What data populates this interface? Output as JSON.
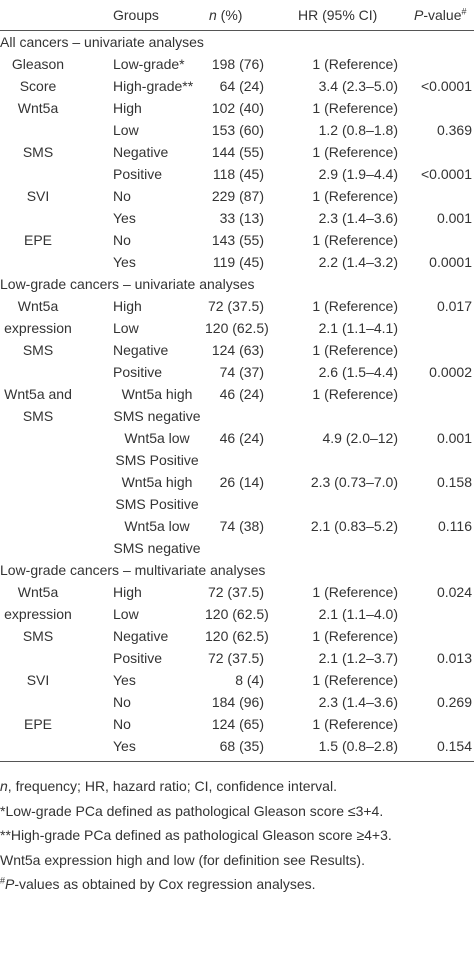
{
  "header": {
    "groups": "Groups",
    "n_italic": "n",
    "n_rest": " (%)",
    "hr": "HR (95% CI)",
    "p_italic": "P",
    "p_rest": "-value",
    "p_sup": "#"
  },
  "sections": [
    {
      "title": "All cancers – univariate analyses",
      "variables": [
        {
          "label": "Gleason Score",
          "rows": [
            {
              "group": "Low-grade*",
              "n": "198 (76)",
              "hr": "1 (Reference)"
            },
            {
              "group": "High-grade**",
              "n": "64 (24)",
              "hr": "3.4 (2.3–5.0)",
              "p": "<0.0001"
            }
          ]
        },
        {
          "label": "Wnt5a",
          "rows": [
            {
              "group": "High",
              "n": "102 (40)",
              "hr": "1 (Reference)"
            },
            {
              "group": "Low",
              "n": "153 (60)",
              "hr": "1.2 (0.8–1.8)",
              "p": "0.369"
            }
          ]
        },
        {
          "label": "SMS",
          "rows": [
            {
              "group": "Negative",
              "n": "144 (55)",
              "hr": "1 (Reference)"
            },
            {
              "group": "Positive",
              "n": "118 (45)",
              "hr": "2.9 (1.9–4.4)",
              "p": "<0.0001"
            }
          ]
        },
        {
          "label": "SVI",
          "rows": [
            {
              "group": "No",
              "n": "229 (87)",
              "hr": "1 (Reference)"
            },
            {
              "group": "Yes",
              "n": "33 (13)",
              "hr": "2.3 (1.4–3.6)",
              "p": "0.001"
            }
          ]
        },
        {
          "label": "EPE",
          "rows": [
            {
              "group": "No",
              "n": "143 (55)",
              "hr": "1 (Reference)"
            },
            {
              "group": "Yes",
              "n": "119 (45)",
              "hr": "2.2 (1.4–3.2)",
              "p": "0.0001"
            }
          ]
        }
      ]
    },
    {
      "title": "Low-grade cancers – univariate analyses",
      "variables": [
        {
          "label": "Wnt5a expression",
          "rows": [
            {
              "group": "High",
              "n": "72 (37.5)",
              "hr": "1 (Reference)",
              "p": "0.017"
            },
            {
              "group": "Low",
              "n": "120 (62.5)",
              "hr": "2.1 (1.1–4.1)"
            }
          ]
        },
        {
          "label": "SMS",
          "rows": [
            {
              "group": "Negative",
              "n": "124 (63)",
              "hr": "1 (Reference)"
            },
            {
              "group": "Positive",
              "n": "74 (37)",
              "hr": "2.6 (1.5–4.4)",
              "p": "0.0002"
            }
          ]
        },
        {
          "label": "Wnt5a and SMS",
          "rows": [
            {
              "group": "Wnt5a high SMS negative",
              "n": "46 (24)",
              "hr": "1 (Reference)"
            },
            {
              "group": "Wnt5a low SMS Positive",
              "n": "46 (24)",
              "hr": "4.9 (2.0–12)",
              "p": "0.001"
            },
            {
              "group": "Wnt5a high SMS Positive",
              "n": "26 (14)",
              "hr": "2.3 (0.73–7.0)",
              "p": "0.158"
            },
            {
              "group": "Wnt5a low SMS negative",
              "n": "74 (38)",
              "hr": "2.1 (0.83–5.2)",
              "p": "0.116"
            }
          ]
        }
      ]
    },
    {
      "title": "Low-grade cancers – multivariate analyses",
      "variables": [
        {
          "label": "Wnt5a expression",
          "rows": [
            {
              "group": "High",
              "n": "72 (37.5)",
              "hr": "1 (Reference)",
              "p": "0.024"
            },
            {
              "group": "Low",
              "n": "120 (62.5)",
              "hr": "2.1 (1.1–4.0)"
            }
          ]
        },
        {
          "label": "SMS",
          "rows": [
            {
              "group": "Negative",
              "n": "120 (62.5)",
              "hr": "1 (Reference)"
            },
            {
              "group": "Positive",
              "n": "72 (37.5)",
              "hr": "2.1 (1.2–3.7)",
              "p": "0.013"
            }
          ]
        },
        {
          "label": "SVI",
          "rows": [
            {
              "group": "Yes",
              "n": "8 (4)",
              "hr": "1 (Reference)"
            },
            {
              "group": "No",
              "n": "184 (96)",
              "hr": "2.3 (1.4–3.6)",
              "p": "0.269"
            }
          ]
        },
        {
          "label": "EPE",
          "rows": [
            {
              "group": "No",
              "n": "124 (65)",
              "hr": "1 (Reference)"
            },
            {
              "group": "Yes",
              "n": "68 (35)",
              "hr": "1.5 (0.8–2.8)",
              "p": "0.154"
            }
          ]
        }
      ]
    }
  ],
  "footnotes": [
    {
      "italic": "n",
      "text": ", frequency; HR, hazard ratio; CI, confidence interval."
    },
    {
      "text": "*Low-grade PCa defined as pathological Gleason score ≤3+4."
    },
    {
      "text": "**High-grade PCa defined as pathological Gleason score ≥4+3."
    },
    {
      "text": "Wnt5a expression high and low (for definition see Results)."
    },
    {
      "sup": "#",
      "italic": "P",
      "text": "-values as obtained by Cox regression analyses."
    }
  ]
}
